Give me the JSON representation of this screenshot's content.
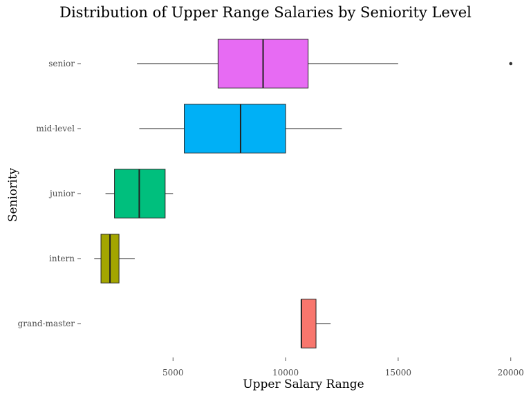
{
  "chart_data": {
    "type": "boxplot",
    "title": "Distribution of Upper Range Salaries by Seniority Level",
    "xlabel": "Upper Salary Range",
    "ylabel": "Seniority",
    "xlim": [
      1000,
      20500
    ],
    "x_ticks": [
      5000,
      10000,
      15000,
      20000
    ],
    "x_tick_labels": [
      "5000",
      "10000",
      "15000",
      "20000"
    ],
    "grid": false,
    "legend": "none",
    "categories": [
      "grand-master",
      "intern",
      "junior",
      "mid-level",
      "senior"
    ],
    "boxes": [
      {
        "category": "grand-master",
        "whisker_low": 10700,
        "q1": 10700,
        "median": 10700,
        "q3": 11350,
        "whisker_high": 12000,
        "outliers": [],
        "color": "#F8766D"
      },
      {
        "category": "intern",
        "whisker_low": 1500,
        "q1": 1800,
        "median": 2200,
        "q3": 2600,
        "whisker_high": 3300,
        "outliers": [],
        "color": "#A3A500"
      },
      {
        "category": "junior",
        "whisker_low": 2000,
        "q1": 2400,
        "median": 3500,
        "q3": 4650,
        "whisker_high": 5000,
        "outliers": [],
        "color": "#00BF7D"
      },
      {
        "category": "mid-level",
        "whisker_low": 3500,
        "q1": 5500,
        "median": 8000,
        "q3": 10000,
        "whisker_high": 12500,
        "outliers": [],
        "color": "#00B0F6"
      },
      {
        "category": "senior",
        "whisker_low": 3400,
        "q1": 7000,
        "median": 9000,
        "q3": 11000,
        "whisker_high": 15000,
        "outliers": [
          20000
        ],
        "color": "#E76BF3"
      }
    ]
  }
}
